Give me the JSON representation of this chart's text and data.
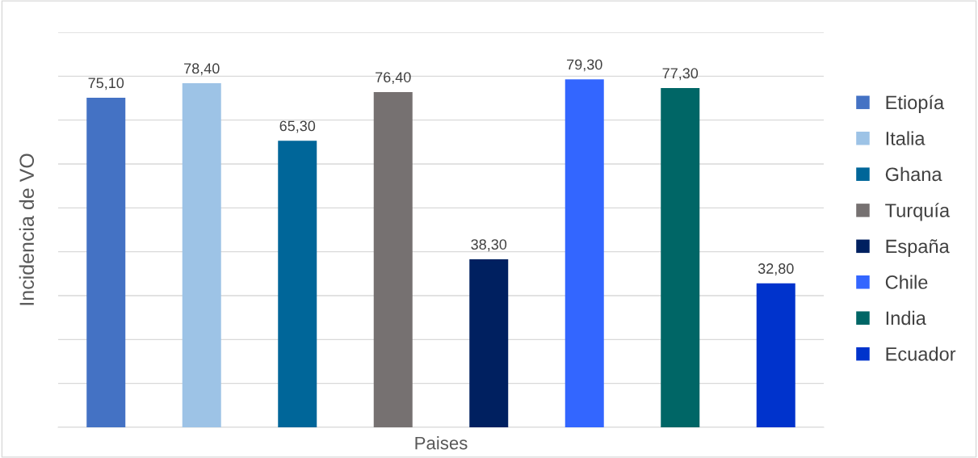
{
  "chart_data": {
    "type": "bar",
    "xlabel": "Paises",
    "ylabel": "Incidencia de VO",
    "categories": [
      null,
      null,
      null,
      null,
      null,
      null,
      null,
      null
    ],
    "series": [
      {
        "name": "Etiopía",
        "color": "#4472c4",
        "values": [
          75.1,
          null,
          null,
          null,
          null,
          null,
          null,
          null
        ],
        "value_labels": [
          "75,10",
          null,
          null,
          null,
          null,
          null,
          null,
          null
        ]
      },
      {
        "name": "Italia",
        "color": "#9dc3e6",
        "values": [
          null,
          78.4,
          null,
          null,
          null,
          null,
          null,
          null
        ],
        "value_labels": [
          null,
          "78,40",
          null,
          null,
          null,
          null,
          null,
          null
        ]
      },
      {
        "name": "Ghana",
        "color": "#006699",
        "values": [
          null,
          null,
          65.3,
          null,
          null,
          null,
          null,
          null
        ],
        "value_labels": [
          null,
          null,
          "65,30",
          null,
          null,
          null,
          null,
          null
        ]
      },
      {
        "name": "Turquía",
        "color": "#767171",
        "values": [
          null,
          null,
          null,
          76.4,
          null,
          null,
          null,
          null
        ],
        "value_labels": [
          null,
          null,
          null,
          "76,40",
          null,
          null,
          null,
          null
        ]
      },
      {
        "name": "España",
        "color": "#002060",
        "values": [
          null,
          null,
          null,
          null,
          38.3,
          null,
          null,
          null
        ],
        "value_labels": [
          null,
          null,
          null,
          null,
          "38,30",
          null,
          null,
          null
        ]
      },
      {
        "name": "Chile",
        "color": "#3366ff",
        "values": [
          null,
          null,
          null,
          null,
          null,
          79.3,
          null,
          null
        ],
        "value_labels": [
          null,
          null,
          null,
          null,
          null,
          "79,30",
          null,
          null
        ]
      },
      {
        "name": "India",
        "color": "#006666",
        "values": [
          null,
          null,
          null,
          null,
          null,
          null,
          77.3,
          null
        ],
        "value_labels": [
          null,
          null,
          null,
          null,
          null,
          null,
          "77,30",
          null
        ]
      },
      {
        "name": "Ecuador",
        "color": "#0033cc",
        "values": [
          null,
          null,
          null,
          null,
          null,
          null,
          null,
          32.8
        ],
        "value_labels": [
          null,
          null,
          null,
          null,
          null,
          null,
          null,
          "32,80"
        ]
      }
    ],
    "ylim": [
      0,
      90
    ],
    "yticks": [
      {
        "value": 0,
        "label": null
      },
      {
        "value": 10,
        "label": null
      },
      {
        "value": 20,
        "label": null
      },
      {
        "value": 30,
        "label": null
      },
      {
        "value": 40,
        "label": null
      },
      {
        "value": 50,
        "label": null
      },
      {
        "value": 60,
        "label": null
      },
      {
        "value": 70,
        "label": null
      },
      {
        "value": 80,
        "label": null
      },
      {
        "value": 90,
        "label": null
      }
    ],
    "grid": "y",
    "legend": "right",
    "tick_labels": false,
    "stacked": true
  }
}
